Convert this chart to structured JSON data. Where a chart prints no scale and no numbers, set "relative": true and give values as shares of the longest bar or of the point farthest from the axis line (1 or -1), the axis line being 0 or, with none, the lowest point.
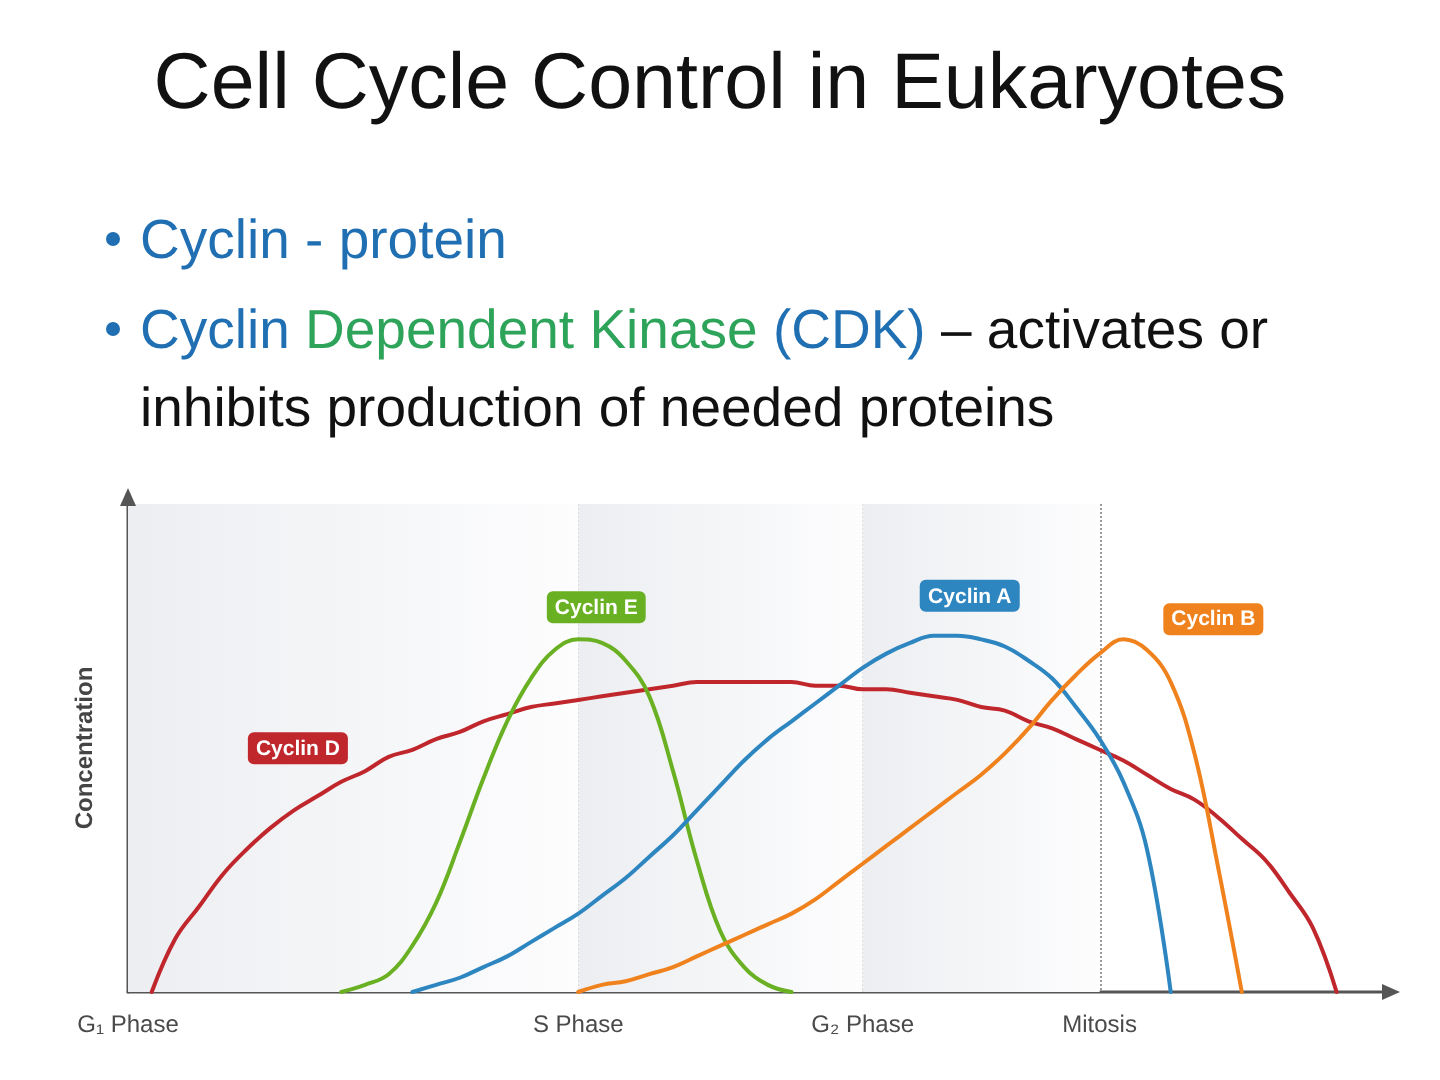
{
  "chart_data": {
    "type": "line",
    "title": "Cell Cycle Control in Eukaryotes",
    "annotations": [
      "Cyclin - protein",
      "Cyclin Dependent Kinase (CDK) – activates or inhibits production of needed proteins"
    ],
    "ylabel": "Concentration",
    "relative": true,
    "categories": [
      "G₁ Phase",
      null,
      null,
      null,
      null,
      null,
      null,
      null,
      null,
      null,
      null,
      null,
      null,
      null,
      null,
      null,
      null,
      null,
      null,
      "S Phase",
      null,
      null,
      null,
      null,
      null,
      null,
      null,
      null,
      null,
      null,
      null,
      "G₂ Phase",
      null,
      null,
      null,
      null,
      null,
      null,
      null,
      null,
      null,
      "Mitosis",
      null,
      null,
      null,
      null,
      null,
      null,
      null,
      null,
      null,
      null,
      null,
      null
    ],
    "tick_labels": "x",
    "grid": "x",
    "marker": "none",
    "line_style": "solid",
    "bands": [
      {
        "axis": "x",
        "from": "G₁ Phase",
        "to": "S Phase",
        "color": "#eceef1"
      },
      {
        "axis": "x",
        "from": "S Phase",
        "to": "G₂ Phase",
        "color": "#eceef1"
      },
      {
        "axis": "x",
        "from": "G₂ Phase",
        "to": "Mitosis",
        "color": "#eceef1"
      }
    ],
    "series": [
      {
        "name": "Cyclin D",
        "color": "#c0272d",
        "values": [
          null,
          0,
          0.15,
          0.24,
          0.33,
          0.4,
          0.46,
          0.51,
          0.55,
          0.59,
          0.62,
          0.66,
          0.68,
          0.71,
          0.73,
          0.76,
          0.78,
          0.8,
          0.81,
          0.82,
          0.83,
          0.84,
          0.85,
          0.86,
          0.87,
          0.87,
          0.87,
          0.87,
          0.87,
          0.86,
          0.86,
          0.85,
          0.85,
          0.84,
          0.83,
          0.82,
          0.8,
          0.79,
          0.76,
          0.74,
          0.71,
          0.68,
          0.65,
          0.61,
          0.57,
          0.54,
          0.49,
          0.43,
          0.37,
          0.28,
          0.18,
          0,
          null,
          null
        ]
      },
      {
        "name": "Cyclin E",
        "color": "#6ab023",
        "values": [
          null,
          null,
          null,
          null,
          null,
          null,
          null,
          null,
          null,
          0,
          0.02,
          0.05,
          0.13,
          0.25,
          0.42,
          0.6,
          0.76,
          0.88,
          0.96,
          0.99,
          0.98,
          0.93,
          0.83,
          0.62,
          0.37,
          0.17,
          0.07,
          0.02,
          0,
          null,
          null,
          null,
          null,
          null,
          null,
          null,
          null,
          null,
          null,
          null,
          null,
          null,
          null,
          null,
          null,
          null,
          null,
          null,
          null,
          null,
          null,
          null,
          null,
          null
        ]
      },
      {
        "name": "Cyclin A",
        "color": "#2e86c1",
        "values": [
          null,
          null,
          null,
          null,
          null,
          null,
          null,
          null,
          null,
          null,
          null,
          null,
          0,
          0.02,
          0.04,
          0.07,
          0.1,
          0.14,
          0.18,
          0.22,
          0.27,
          0.32,
          0.38,
          0.44,
          0.51,
          0.58,
          0.65,
          0.71,
          0.76,
          0.81,
          0.86,
          0.91,
          0.95,
          0.98,
          1.0,
          1.0,
          0.99,
          0.97,
          0.93,
          0.88,
          0.8,
          0.71,
          0.59,
          0.4,
          0,
          null,
          null,
          null,
          null,
          null,
          null,
          null,
          null,
          null
        ]
      },
      {
        "name": "Cyclin B",
        "color": "#f0821e",
        "values": [
          null,
          null,
          null,
          null,
          null,
          null,
          null,
          null,
          null,
          null,
          null,
          null,
          null,
          null,
          null,
          null,
          null,
          null,
          null,
          0,
          0.02,
          0.03,
          0.05,
          0.07,
          0.1,
          0.13,
          0.16,
          0.19,
          0.22,
          0.26,
          0.31,
          0.36,
          0.41,
          0.46,
          0.51,
          0.56,
          0.61,
          0.67,
          0.74,
          0.82,
          0.89,
          0.95,
          0.99,
          0.96,
          0.87,
          0.67,
          0.35,
          0,
          null,
          null,
          null,
          null,
          null,
          null
        ]
      }
    ]
  }
}
